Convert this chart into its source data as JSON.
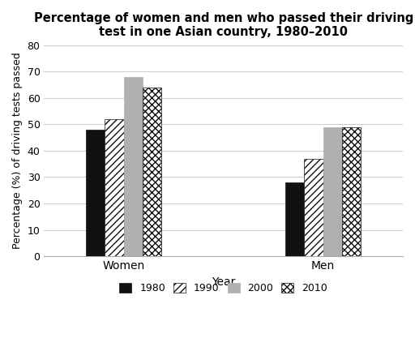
{
  "title": "Percentage of women and men who passed their driving\ntest in one Asian country, 1980–2010",
  "xlabel": "Year",
  "ylabel": "Percentage (%) of driving tests passed",
  "categories": [
    "Women",
    "Men"
  ],
  "years": [
    "1980",
    "1990",
    "2000",
    "2010"
  ],
  "values": {
    "Women": [
      48,
      52,
      68,
      64
    ],
    "Men": [
      28,
      37,
      49,
      49
    ]
  },
  "ylim": [
    0,
    80
  ],
  "yticks": [
    0,
    10,
    20,
    30,
    40,
    50,
    60,
    70,
    80
  ],
  "bar_width": 0.19,
  "background_color": "#ffffff",
  "legend_labels": [
    "1980",
    "1990",
    "2000",
    "2010"
  ]
}
